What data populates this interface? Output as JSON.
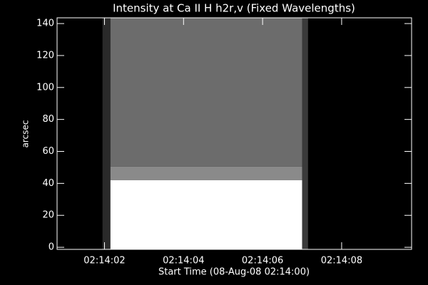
{
  "chart_data": {
    "type": "image",
    "title": "Intensity at Ca II H h2r,v (Fixed Wavelengths)",
    "xlabel": "Start Time (08-Aug-08 02:14:00)",
    "ylabel": "arcsec",
    "xlim": [
      0.8,
      9.77
    ],
    "ylim": [
      -1.3,
      143.6
    ],
    "xticks": [
      {
        "value": 2,
        "label": "02:14:02"
      },
      {
        "value": 4,
        "label": "02:14:04"
      },
      {
        "value": 6,
        "label": "02:14:06"
      },
      {
        "value": 8,
        "label": "02:14:08"
      }
    ],
    "yticks": [
      0,
      20,
      40,
      60,
      80,
      100,
      120,
      140
    ],
    "regions": [
      {
        "x": [
          1.95,
          2.15
        ],
        "y": [
          -1.3,
          143.6
        ],
        "color": "#2a2a2a"
      },
      {
        "x": [
          2.15,
          7.0
        ],
        "y": [
          50.5,
          143.6
        ],
        "color": "#6c6c6c"
      },
      {
        "x": [
          2.15,
          7.0
        ],
        "y": [
          42,
          50.5
        ],
        "color": "#8a8a8a"
      },
      {
        "x": [
          2.15,
          7.0
        ],
        "y": [
          -1.3,
          42
        ],
        "color": "#ffffff"
      },
      {
        "x": [
          7.0,
          7.15
        ],
        "y": [
          -1.3,
          143.6
        ],
        "color": "#3a3a3a"
      }
    ]
  }
}
